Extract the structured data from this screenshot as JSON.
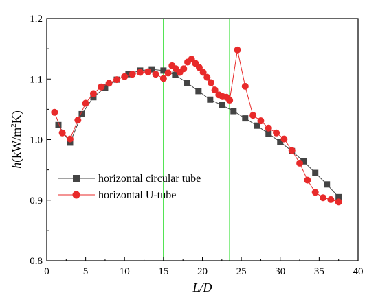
{
  "chart_data": {
    "type": "line",
    "title": "",
    "xlabel": "L/D",
    "ylabel_prefix": "h",
    "ylabel_unit": "(kW/m",
    "ylabel_sup": "2",
    "ylabel_suffix": "K)",
    "xlim": [
      0,
      40
    ],
    "ylim": [
      0.8,
      1.2
    ],
    "x_ticks": [
      0,
      5,
      10,
      15,
      20,
      25,
      30,
      35,
      40
    ],
    "y_ticks": [
      0.8,
      0.9,
      1.0,
      1.1,
      1.2
    ],
    "x_tick_labels": [
      "0",
      "5",
      "10",
      "15",
      "20",
      "25",
      "30",
      "35",
      "40"
    ],
    "y_tick_labels": [
      "0.8",
      "0.9",
      "1.0",
      "1.1",
      "1.2"
    ],
    "grid": false,
    "legend_position": "lower-left",
    "vertical_lines": [
      {
        "x": 15,
        "color": "#22dd22"
      },
      {
        "x": 23.5,
        "color": "#22dd22"
      }
    ],
    "series": [
      {
        "name": "horizontal circular tube",
        "color": "#444444",
        "marker": "square",
        "x": [
          1.5,
          3,
          4.5,
          6,
          7.5,
          9,
          10.5,
          12,
          13.5,
          15,
          16.5,
          18,
          19.5,
          21,
          22.5,
          24,
          25.5,
          27,
          28.5,
          30,
          31.5,
          33,
          34.5,
          36,
          37.5
        ],
        "y": [
          1.024,
          0.995,
          1.042,
          1.07,
          1.086,
          1.099,
          1.108,
          1.114,
          1.116,
          1.114,
          1.107,
          1.094,
          1.08,
          1.066,
          1.057,
          1.047,
          1.035,
          1.023,
          1.01,
          0.996,
          0.981,
          0.964,
          0.945,
          0.926,
          0.905
        ]
      },
      {
        "name": "horizontal U-tube",
        "color": "#e82a2a",
        "marker": "circle",
        "x": [
          1,
          2,
          3,
          4,
          5,
          6,
          7,
          8,
          9,
          10,
          11,
          12,
          13,
          14,
          15,
          15.6,
          16.1,
          16.6,
          17.1,
          17.6,
          18.1,
          18.6,
          19.1,
          19.6,
          20.1,
          20.6,
          21.1,
          21.6,
          22.1,
          22.6,
          23.1,
          23.5,
          24.5,
          25.5,
          26.5,
          27.5,
          28.5,
          29.5,
          30.5,
          31.5,
          32.5,
          33.5,
          34.5,
          35.5,
          36.5,
          37.5
        ],
        "y": [
          1.045,
          1.011,
          1.001,
          1.032,
          1.06,
          1.076,
          1.087,
          1.093,
          1.099,
          1.104,
          1.108,
          1.111,
          1.112,
          1.108,
          1.101,
          1.11,
          1.122,
          1.117,
          1.111,
          1.117,
          1.128,
          1.133,
          1.126,
          1.119,
          1.111,
          1.103,
          1.094,
          1.082,
          1.074,
          1.071,
          1.07,
          1.065,
          1.148,
          1.088,
          1.04,
          1.031,
          1.019,
          1.011,
          1.001,
          0.982,
          0.961,
          0.933,
          0.913,
          0.904,
          0.901,
          0.897
        ]
      }
    ]
  }
}
